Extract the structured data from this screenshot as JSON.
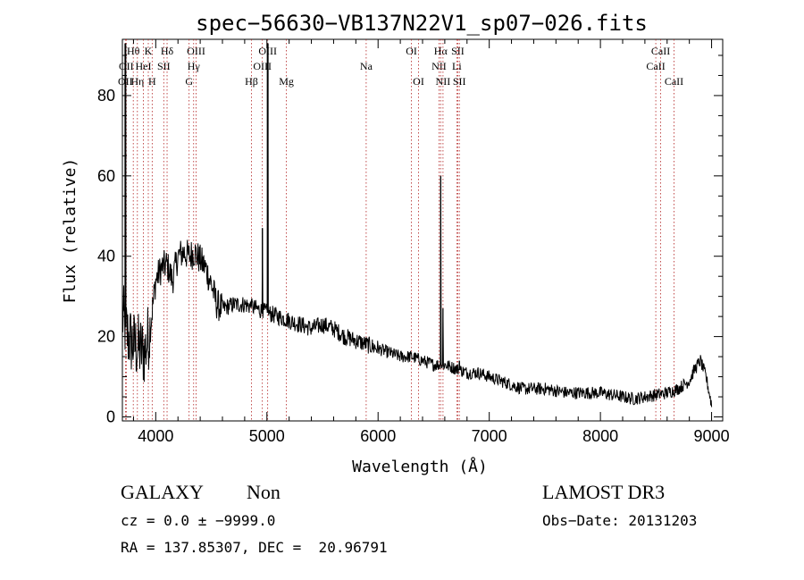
{
  "chart_data": {
    "type": "line",
    "title": "spec−56630−VB137N22V1_sp07−026.fits",
    "xlabel": "Wavelength (Å)",
    "ylabel": "Flux (relative)",
    "xlim": [
      3700,
      9100
    ],
    "ylim": [
      -1,
      94
    ],
    "xticks": [
      4000,
      5000,
      6000,
      7000,
      8000,
      9000
    ],
    "yticks": [
      0,
      20,
      40,
      60,
      80
    ],
    "xtick_labels": [
      "4000",
      "5000",
      "6000",
      "7000",
      "8000",
      "9000"
    ],
    "ytick_labels": [
      "0",
      "20",
      "40",
      "60",
      "80"
    ],
    "series": [
      {
        "name": "flux",
        "x": [
          3700,
          3750,
          3800,
          3850,
          3900,
          3950,
          4000,
          4050,
          4100,
          4150,
          4200,
          4250,
          4300,
          4350,
          4400,
          4450,
          4500,
          4550,
          4600,
          4700,
          4800,
          4900,
          5000,
          5100,
          5200,
          5300,
          5400,
          5500,
          5600,
          5700,
          5800,
          5900,
          6000,
          6100,
          6200,
          6300,
          6400,
          6500,
          6600,
          6700,
          6800,
          6900,
          7000,
          7100,
          7200,
          7300,
          7400,
          7500,
          7600,
          7700,
          7800,
          7900,
          8000,
          8100,
          8200,
          8300,
          8400,
          8500,
          8600,
          8700,
          8800,
          8850,
          8900,
          8950,
          9000
        ],
        "y": [
          25,
          20,
          18,
          17,
          16,
          22,
          34,
          37,
          38,
          34,
          40,
          41,
          40,
          41,
          39,
          37,
          33,
          28,
          27,
          28,
          28,
          27,
          26,
          25,
          24,
          23,
          22,
          23,
          22,
          20,
          19,
          18,
          17,
          16,
          15,
          15,
          14,
          13,
          13,
          12,
          11,
          11,
          10,
          9,
          8,
          7,
          7,
          7,
          6.5,
          6,
          6,
          6,
          6,
          5.5,
          5,
          4.5,
          5,
          5.5,
          6,
          7,
          9,
          12,
          14,
          10,
          3
        ]
      }
    ],
    "emission_spikes": [
      {
        "x": 3727,
        "y": 93
      },
      {
        "x": 4861,
        "y": 29
      },
      {
        "x": 4959,
        "y": 47
      },
      {
        "x": 5007,
        "y": 93
      },
      {
        "x": 6563,
        "y": 60
      },
      {
        "x": 6584,
        "y": 27
      },
      {
        "x": 6731,
        "y": 14
      }
    ],
    "line_markers": [
      {
        "x": 3727,
        "label": "OII",
        "row": 3
      },
      {
        "x": 3735,
        "label": "OII",
        "row": 2
      },
      {
        "x": 3798,
        "label": "Hθ",
        "row": 1
      },
      {
        "x": 3835,
        "label": "Hη",
        "row": 3
      },
      {
        "x": 3889,
        "label": "HeI",
        "row": 2
      },
      {
        "x": 3933,
        "label": "K",
        "row": 1
      },
      {
        "x": 3968,
        "label": "H",
        "row": 3
      },
      {
        "x": 4072,
        "label": "SII",
        "row": 2
      },
      {
        "x": 4102,
        "label": "Hδ",
        "row": 1
      },
      {
        "x": 4300,
        "label": "G",
        "row": 3
      },
      {
        "x": 4341,
        "label": "Hγ",
        "row": 2
      },
      {
        "x": 4363,
        "label": "OIII",
        "row": 1
      },
      {
        "x": 4861,
        "label": "Hβ",
        "row": 3
      },
      {
        "x": 4959,
        "label": "OIII",
        "row": 2
      },
      {
        "x": 5007,
        "label": "OIII",
        "row": 1
      },
      {
        "x": 5175,
        "label": "Mg",
        "row": 3
      },
      {
        "x": 5893,
        "label": "Na",
        "row": 2
      },
      {
        "x": 6300,
        "label": "OI",
        "row": 1
      },
      {
        "x": 6364,
        "label": "OI",
        "row": 3
      },
      {
        "x": 6548,
        "label": "NII",
        "row": 2
      },
      {
        "x": 6563,
        "label": "Hα",
        "row": 1
      },
      {
        "x": 6584,
        "label": "NII",
        "row": 3
      },
      {
        "x": 6708,
        "label": "Li",
        "row": 2
      },
      {
        "x": 6717,
        "label": "SII",
        "row": 1
      },
      {
        "x": 6731,
        "label": "SII",
        "row": 3
      },
      {
        "x": 8498,
        "label": "CaII",
        "row": 2
      },
      {
        "x": 8542,
        "label": "CaII",
        "row": 1
      },
      {
        "x": 8662,
        "label": "CaII",
        "row": 3
      }
    ]
  },
  "info": {
    "object_class": "GALAXY",
    "subclass": "Non",
    "survey": "LAMOST DR3",
    "cz": "cz = 0.0 ± −9999.0",
    "obs_date": "Obs−Date: 20131203",
    "coords": "RA = 137.85307, DEC =  20.96791"
  }
}
